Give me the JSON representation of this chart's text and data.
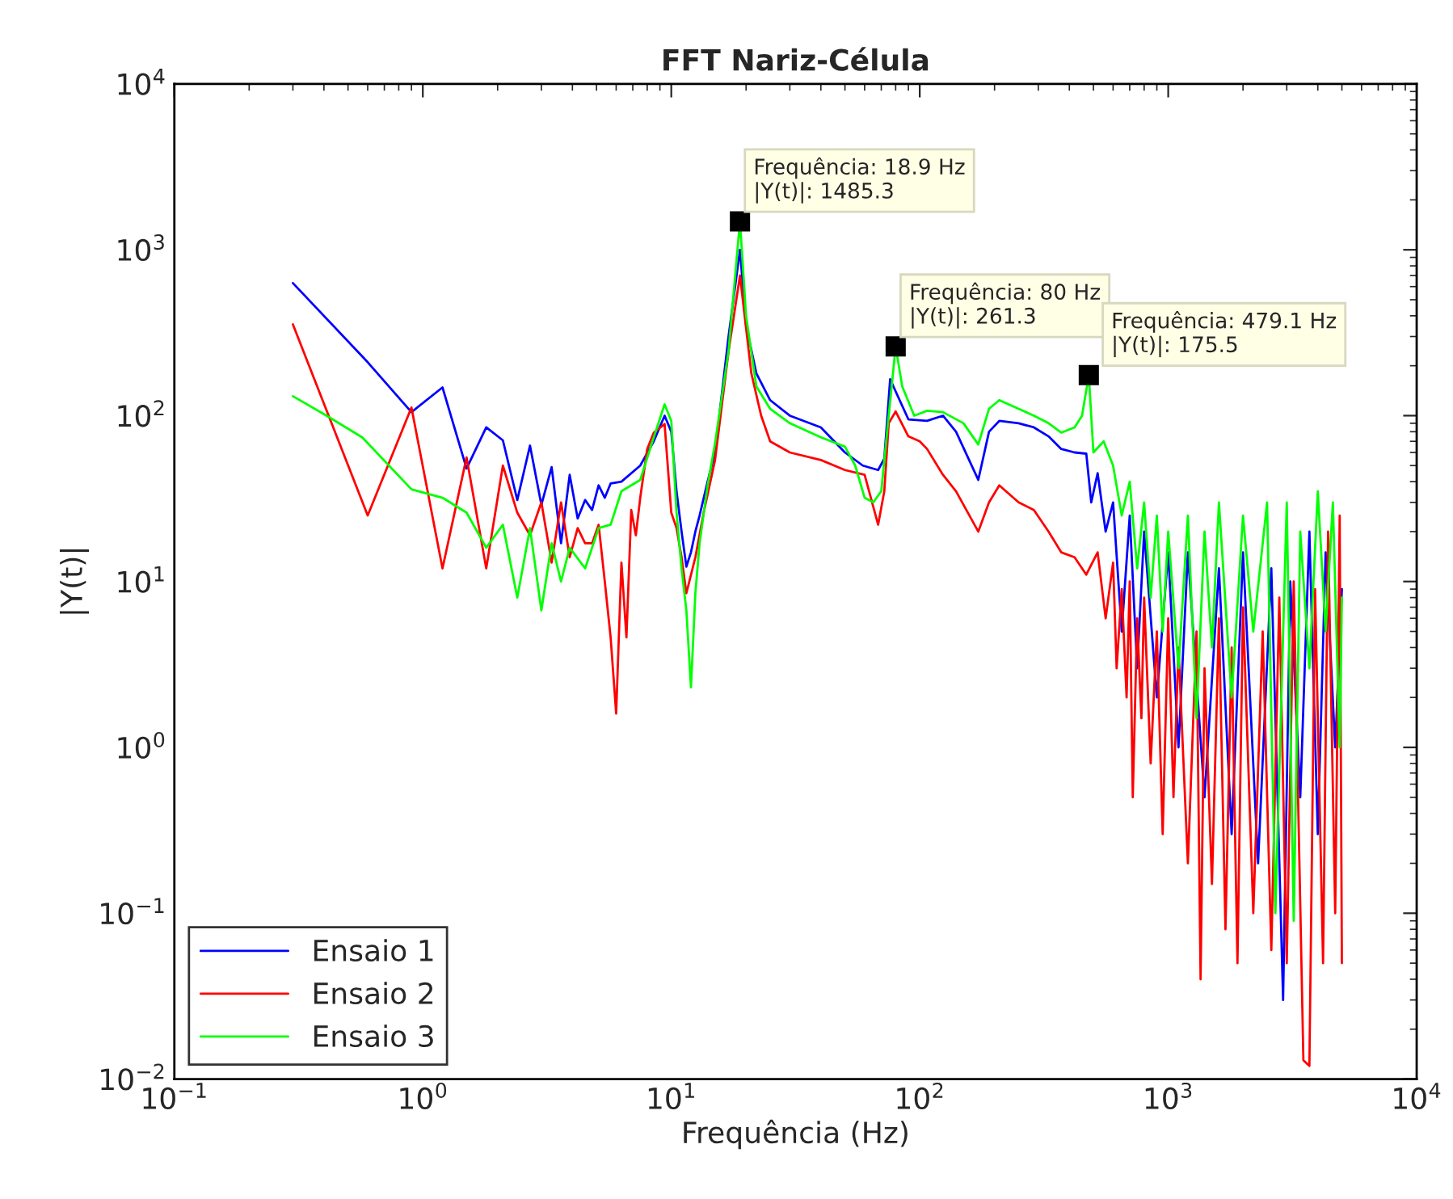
{
  "chart_data": {
    "type": "line",
    "title": "FFT Nariz-Célula",
    "xlabel": "Frequência (Hz)",
    "ylabel": "|Y(t)|",
    "log": "xy",
    "grid": false,
    "legend": "bottom left",
    "line_style": "solid",
    "marker": "none",
    "xlim": [
      0.1,
      10000
    ],
    "ylim": [
      0.01,
      10000
    ],
    "xticks": [
      {
        "value": 0.1,
        "label": "10$^{−1}$"
      },
      {
        "value": 1,
        "label": "10$^{0}$"
      },
      {
        "value": 10,
        "label": "10$^{1}$"
      },
      {
        "value": 100,
        "label": "10$^{2}$"
      },
      {
        "value": 1000,
        "label": "10$^{3}$"
      },
      {
        "value": 10000,
        "label": "10$^{4}$"
      }
    ],
    "yticks": [
      {
        "value": 0.01,
        "label": "10$^{−2}$"
      },
      {
        "value": 0.1,
        "label": "10$^{−1}$"
      },
      {
        "value": 1,
        "label": "10$^{0}$"
      },
      {
        "value": 10,
        "label": "10$^{1}$"
      },
      {
        "value": 100,
        "label": "10$^{2}$"
      },
      {
        "value": 1000,
        "label": "10$^{3}$"
      },
      {
        "value": 10000,
        "label": "10$^{4}$"
      }
    ],
    "annotations": [
      {
        "text": "Frequência: 18.9 Hz\n|Y(t)|: 1485.3",
        "x": 18.9,
        "y": 1485.3
      },
      {
        "text": "Frequência: 80 Hz\n|Y(t)|: 261.3",
        "x": 80,
        "y": 261.3
      },
      {
        "text": "Frequência: 479.1 Hz\n|Y(t)|: 175.5",
        "x": 479.1,
        "y": 175.5
      }
    ],
    "series": [
      {
        "name": "Ensaio 1",
        "color": "#0000ff",
        "x": [
          0.3,
          0.6,
          0.9,
          1.2,
          1.5,
          1.8,
          2.1,
          2.4,
          2.7,
          3.0,
          3.3,
          3.6,
          3.9,
          4.2,
          4.5,
          4.8,
          5.1,
          5.4,
          5.7,
          6.3,
          7.5,
          8.5,
          9.4,
          10,
          10.5,
          11,
          11.5,
          12,
          12.5,
          13,
          14,
          15,
          17,
          18.9,
          20,
          22,
          25,
          30,
          40,
          50,
          59,
          68,
          72,
          76,
          80,
          90,
          107,
          124,
          140,
          172,
          190,
          209,
          250,
          288,
          330,
          371,
          420,
          468,
          490,
          520,
          560,
          600,
          650,
          700,
          750,
          800,
          900,
          1000,
          1100,
          1200,
          1400,
          1600,
          1800,
          2000,
          2300,
          2600,
          2900,
          3100,
          3400,
          3700,
          4000,
          4300,
          4700,
          5000
        ],
        "values": [
          630,
          210,
          105,
          148,
          48,
          85,
          71,
          31,
          66,
          29,
          49,
          17,
          44,
          24,
          31,
          27,
          38,
          32,
          39,
          40,
          50,
          70,
          100,
          80,
          35,
          20,
          12.3,
          15,
          20,
          25,
          40,
          60,
          300,
          1000,
          350,
          180,
          124,
          100,
          85,
          60,
          50,
          47,
          55,
          166,
          140,
          95,
          93,
          100,
          80,
          41,
          80,
          93,
          90,
          85,
          75,
          63,
          60,
          59,
          30,
          45,
          20,
          30,
          5,
          25,
          3,
          20,
          2,
          15,
          1,
          15,
          0.5,
          12,
          0.3,
          15,
          0.2,
          12,
          0.03,
          10,
          0.5,
          20,
          0.3,
          15,
          1,
          9
        ]
      },
      {
        "name": "Ensaio 2",
        "color": "#ff0000",
        "x": [
          0.3,
          0.6,
          0.9,
          1.2,
          1.5,
          1.8,
          2.1,
          2.4,
          2.7,
          3.0,
          3.3,
          3.6,
          3.9,
          4.2,
          4.5,
          4.8,
          5.1,
          5.4,
          5.7,
          6.0,
          6.3,
          6.6,
          6.9,
          7.2,
          7.5,
          8,
          8.5,
          9.4,
          10,
          10.5,
          11,
          11.5,
          12.5,
          13.5,
          15,
          17,
          18.9,
          21,
          23,
          25,
          30,
          40,
          50,
          60,
          68,
          72,
          75,
          80,
          90,
          100,
          107,
          124,
          140,
          172,
          190,
          209,
          250,
          288,
          330,
          371,
          420,
          468,
          520,
          560,
          600,
          620,
          650,
          680,
          700,
          720,
          750,
          780,
          800,
          850,
          900,
          950,
          1000,
          1050,
          1100,
          1200,
          1300,
          1350,
          1400,
          1500,
          1600,
          1700,
          1800,
          1900,
          2000,
          2200,
          2400,
          2600,
          2800,
          3000,
          3200,
          3500,
          3700,
          3900,
          4200,
          4400,
          4700,
          4900,
          5000
        ],
        "values": [
          355,
          25,
          112,
          12,
          56,
          12,
          50,
          26,
          19,
          30,
          13,
          30,
          14,
          21,
          17,
          17,
          22,
          10,
          4.6,
          1.6,
          13,
          4.6,
          27,
          19,
          32,
          63,
          79,
          89,
          26,
          21,
          14,
          8.5,
          14,
          26,
          54,
          244,
          700,
          180,
          100,
          70,
          60,
          54,
          47,
          44,
          22,
          35,
          90,
          106,
          75,
          70,
          63,
          44,
          35,
          20,
          30,
          38,
          30,
          27,
          20,
          15,
          14,
          11,
          15,
          6,
          13,
          3,
          9,
          2,
          10,
          0.5,
          6,
          1.5,
          8,
          0.8,
          5,
          0.3,
          6,
          0.5,
          4,
          0.2,
          5,
          0.04,
          3,
          0.15,
          6,
          0.08,
          4,
          0.05,
          7,
          0.1,
          5,
          0.06,
          8,
          0.05,
          10,
          0.013,
          0.012,
          9,
          0.05,
          20,
          0.1,
          25,
          0.05
        ]
      },
      {
        "name": "Ensaio 3",
        "color": "#00ff00",
        "x": [
          0.3,
          0.41,
          0.57,
          0.9,
          1.2,
          1.5,
          1.8,
          2.1,
          2.4,
          2.7,
          3.0,
          3.3,
          3.6,
          3.9,
          4.5,
          5.1,
          5.7,
          6.3,
          7.5,
          8.5,
          9.4,
          10,
          10.5,
          11,
          11.5,
          12,
          12.5,
          13,
          14,
          15,
          17,
          18.9,
          20,
          22,
          25,
          30,
          40,
          50,
          55,
          60,
          65,
          70,
          75,
          80,
          85,
          95,
          107,
          124,
          150,
          172,
          190,
          209,
          250,
          288,
          330,
          371,
          420,
          450,
          479.1,
          500,
          550,
          600,
          650,
          700,
          750,
          800,
          850,
          900,
          950,
          1000,
          1100,
          1200,
          1300,
          1400,
          1500,
          1600,
          1800,
          2000,
          2200,
          2500,
          2700,
          3000,
          3200,
          3400,
          3700,
          4000,
          4300,
          4600,
          4900,
          5000
        ],
        "values": [
          131,
          100,
          74,
          36,
          32,
          26,
          16,
          22,
          8,
          21,
          6.7,
          17,
          10,
          16,
          12,
          21,
          22,
          35,
          41,
          74,
          117,
          93,
          26,
          12,
          6.7,
          2.3,
          8.5,
          17,
          38,
          68,
          245,
          1485.3,
          400,
          150,
          110,
          90,
          74,
          65,
          50,
          32,
          30,
          35,
          100,
          261.3,
          150,
          100,
          107,
          105,
          90,
          67,
          110,
          124,
          110,
          100,
          90,
          79,
          85,
          100,
          175.5,
          60,
          70,
          50,
          25,
          40,
          12,
          30,
          8,
          25,
          5,
          20,
          3,
          25,
          1.5,
          20,
          4,
          30,
          2,
          25,
          5,
          30,
          0.1,
          30,
          0.09,
          20,
          3,
          35,
          5,
          30,
          1,
          8
        ]
      }
    ]
  }
}
